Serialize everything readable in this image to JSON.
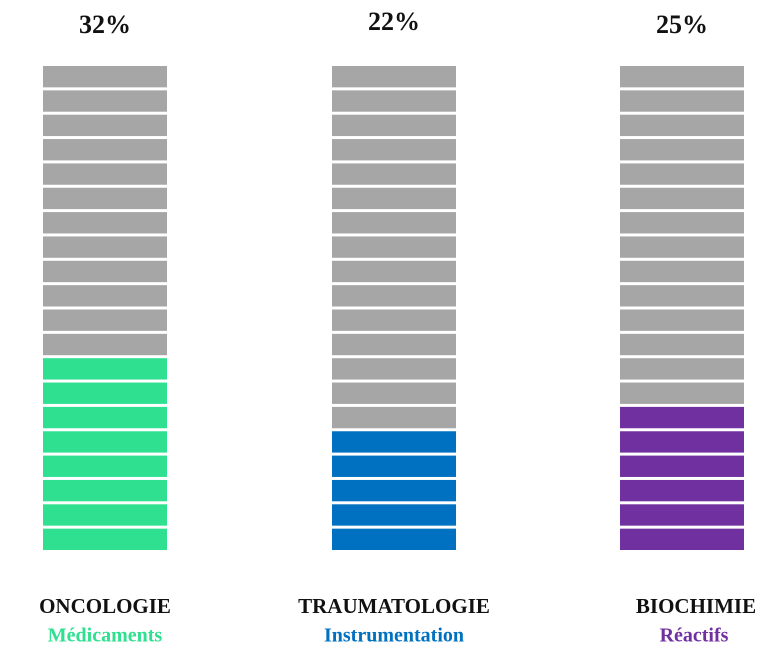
{
  "chart_data": {
    "type": "bar",
    "categories": [
      "ONCOLOGIE",
      "TRAUMATOLOGIE",
      "BIOCHIMIE"
    ],
    "subcategories": [
      "Médicaments",
      "Instrumentation",
      "Réactifs"
    ],
    "values": [
      32,
      22,
      25
    ],
    "value_labels": [
      "32%",
      "22%",
      "25%"
    ],
    "colors": [
      "#2ee08f",
      "#0070c0",
      "#7030a0"
    ],
    "ylim": [
      0,
      80
    ]
  }
}
